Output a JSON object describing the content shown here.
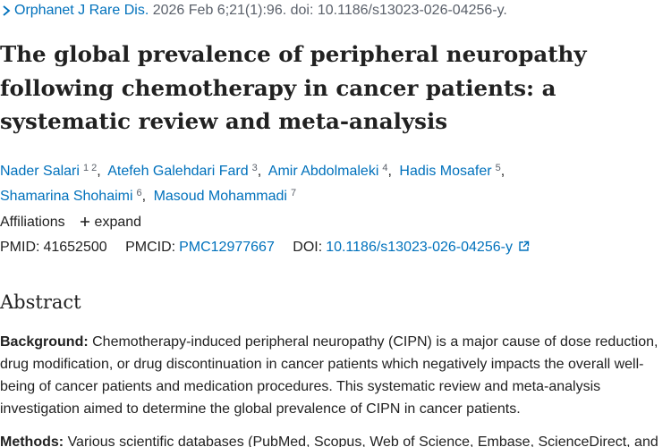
{
  "citation": {
    "journal": "Orphanet J Rare Dis.",
    "details": "2026 Feb 6;21(1):96. doi: 10.1186/s13023-026-04256-y."
  },
  "title": "The global prevalence of peripheral neuropathy following chemotherapy in cancer patients: a systematic review and meta-analysis",
  "authors": [
    {
      "name": "Nader Salari",
      "affiliations": [
        1,
        2
      ]
    },
    {
      "name": "Atefeh Galehdari Fard",
      "affiliations": [
        3
      ]
    },
    {
      "name": "Amir Abdolmaleki",
      "affiliations": [
        4
      ]
    },
    {
      "name": "Hadis Mosafer",
      "affiliations": [
        5
      ]
    },
    {
      "name": "Shamarina Shohaimi",
      "affiliations": [
        6
      ]
    },
    {
      "name": "Masoud Mohammadi",
      "affiliations": [
        7
      ]
    }
  ],
  "affiliations": {
    "label": "Affiliations",
    "toggle": "expand"
  },
  "identifiers": {
    "pmid": {
      "label": "PMID:",
      "value": "41652500"
    },
    "pmcid": {
      "label": "PMCID:",
      "value": "PMC12977667"
    },
    "doi": {
      "label": "DOI:",
      "value": "10.1186/s13023-026-04256-y"
    }
  },
  "abstract": {
    "heading": "Abstract",
    "sections": [
      {
        "label": "Background:",
        "text": "Chemotherapy-induced peripheral neuropathy (CIPN) is a major cause of dose reduction, drug modification, or drug discontinuation in cancer patients which negatively impacts the overall well-being of cancer patients and medication procedures. This systematic review and meta-analysis investigation aimed to determine the global prevalence of CIPN in cancer patients."
      },
      {
        "label": "Methods:",
        "text": "Various scientific databases (PubMed, Scopus, Web of Science, Embase, ScienceDirect, and"
      }
    ]
  }
}
